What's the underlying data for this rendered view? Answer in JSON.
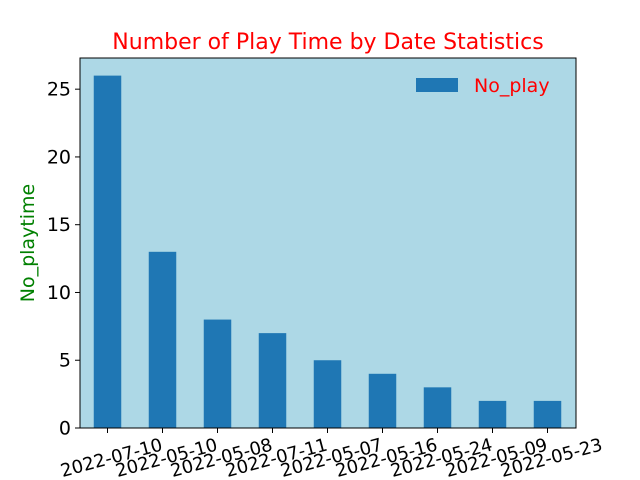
{
  "chart_data": {
    "type": "bar",
    "title": "Number of Play Time by Date Statistics",
    "xlabel": "",
    "ylabel": "No_playtime",
    "categories": [
      "2022-07-10",
      "2022-05-10",
      "2022-05-08",
      "2022-07-11",
      "2022-05-07",
      "2022-05-16",
      "2022-05-24",
      "2022-05-09",
      "2022-05-23"
    ],
    "series": [
      {
        "name": "No_play",
        "values": [
          26,
          13,
          8,
          7,
          5,
          4,
          3,
          2,
          2
        ]
      }
    ],
    "ylim": [
      0,
      27.3
    ],
    "yticks": [
      0,
      5,
      10,
      15,
      20,
      25
    ],
    "grid": false,
    "legend_position": "top-right",
    "colors": {
      "plot_background": "#add8e6",
      "bar": "#1f77b4",
      "title": "#ff0000",
      "ylabel": "#008000",
      "legend_text": "#ff0000"
    }
  }
}
